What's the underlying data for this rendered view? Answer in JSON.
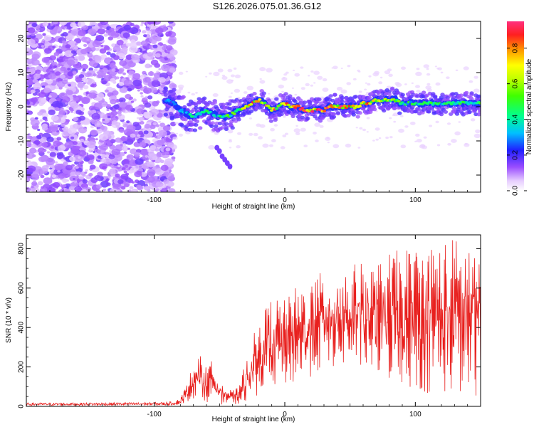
{
  "title": "S126.2026.075.01.36.G12",
  "chart_data": [
    {
      "type": "heatmap",
      "title": "S126.2026.075.01.36.G12",
      "xlabel": "Height of straight line (km)",
      "ylabel": "Frequency (Hz)",
      "xlim": [
        -198,
        150
      ],
      "ylim": [
        -25,
        25
      ],
      "xticks": [
        -100,
        0,
        100
      ],
      "yticks": [
        -20,
        -10,
        0,
        10,
        20
      ],
      "colorbar": {
        "label": "Normalized spectral amplitude",
        "range": [
          0,
          0.95
        ],
        "ticks": [
          "0.0",
          "0.2",
          "0.4",
          "0.6",
          "0.8"
        ],
        "tick_values": [
          0.0,
          0.2,
          0.4,
          0.6,
          0.8
        ]
      },
      "noise_region": {
        "x_from": -198,
        "x_to": -85,
        "y_from": -25,
        "y_to": 25
      },
      "secondary_trace": {
        "x": [
          -52,
          -50,
          -48,
          -46,
          -44,
          -42
        ],
        "y": [
          -12,
          -13,
          -14.5,
          -15.5,
          -16.5,
          -17.5
        ]
      },
      "ridge": {
        "x": [
          -90,
          -85,
          -80,
          -75,
          -70,
          -65,
          -60,
          -55,
          -50,
          -45,
          -40,
          -35,
          -30,
          -25,
          -20,
          -15,
          -10,
          -5,
          0,
          5,
          10,
          15,
          20,
          25,
          30,
          35,
          40,
          45,
          50,
          55,
          60,
          65,
          70,
          75,
          80,
          85,
          90,
          95,
          100,
          105,
          110,
          115,
          120,
          125,
          130,
          135,
          140,
          145,
          150
        ],
        "y": [
          2,
          1,
          -1,
          -2,
          -3,
          -2,
          -1,
          -2,
          -3,
          -3,
          -2,
          -1,
          0,
          1,
          2,
          1,
          -1,
          0,
          1,
          0,
          0,
          -1,
          -1,
          -1,
          -1,
          0,
          0,
          0,
          0,
          0,
          1,
          1,
          2,
          2,
          2,
          2,
          1,
          1,
          1,
          1,
          1,
          1,
          1,
          1,
          1,
          1,
          1,
          1,
          1
        ],
        "amplitude": [
          0.3,
          0.3,
          0.35,
          0.4,
          0.45,
          0.5,
          0.5,
          0.45,
          0.45,
          0.5,
          0.6,
          0.7,
          0.8,
          0.85,
          0.85,
          0.9,
          0.85,
          0.85,
          0.8,
          0.9,
          0.9,
          0.95,
          0.95,
          0.95,
          0.9,
          0.9,
          0.9,
          0.9,
          0.9,
          0.85,
          0.8,
          0.8,
          0.75,
          0.7,
          0.7,
          0.6,
          0.55,
          0.5,
          0.5,
          0.5,
          0.55,
          0.5,
          0.5,
          0.5,
          0.5,
          0.5,
          0.5,
          0.5,
          0.5
        ]
      }
    },
    {
      "type": "line",
      "title": "",
      "xlabel": "Height of straight line (km)",
      "ylabel": "SNR (10 * v/v)",
      "xlim": [
        -198,
        150
      ],
      "ylim": [
        0,
        870
      ],
      "xticks": [
        -100,
        0,
        100
      ],
      "yticks": [
        0,
        200,
        400,
        600,
        800
      ],
      "color": "#e8201e",
      "envelope": {
        "x": [
          -198,
          -150,
          -100,
          -90,
          -85,
          -80,
          -75,
          -70,
          -65,
          -60,
          -55,
          -50,
          -45,
          -40,
          -35,
          -30,
          -25,
          -20,
          -15,
          -10,
          -5,
          0,
          10,
          20,
          30,
          40,
          50,
          60,
          70,
          80,
          90,
          100,
          110,
          120,
          130,
          140,
          150
        ],
        "max": [
          18,
          18,
          20,
          22,
          25,
          40,
          120,
          220,
          260,
          200,
          240,
          140,
          100,
          80,
          100,
          240,
          350,
          420,
          500,
          560,
          560,
          540,
          620,
          650,
          690,
          700,
          720,
          730,
          720,
          780,
          800,
          820,
          830,
          850,
          860,
          860,
          870
        ],
        "min": [
          4,
          4,
          5,
          5,
          6,
          8,
          20,
          40,
          50,
          20,
          30,
          10,
          10,
          10,
          10,
          20,
          40,
          60,
          80,
          90,
          100,
          100,
          110,
          150,
          180,
          200,
          200,
          180,
          150,
          120,
          100,
          80,
          60,
          60,
          50,
          50,
          50
        ]
      }
    }
  ]
}
